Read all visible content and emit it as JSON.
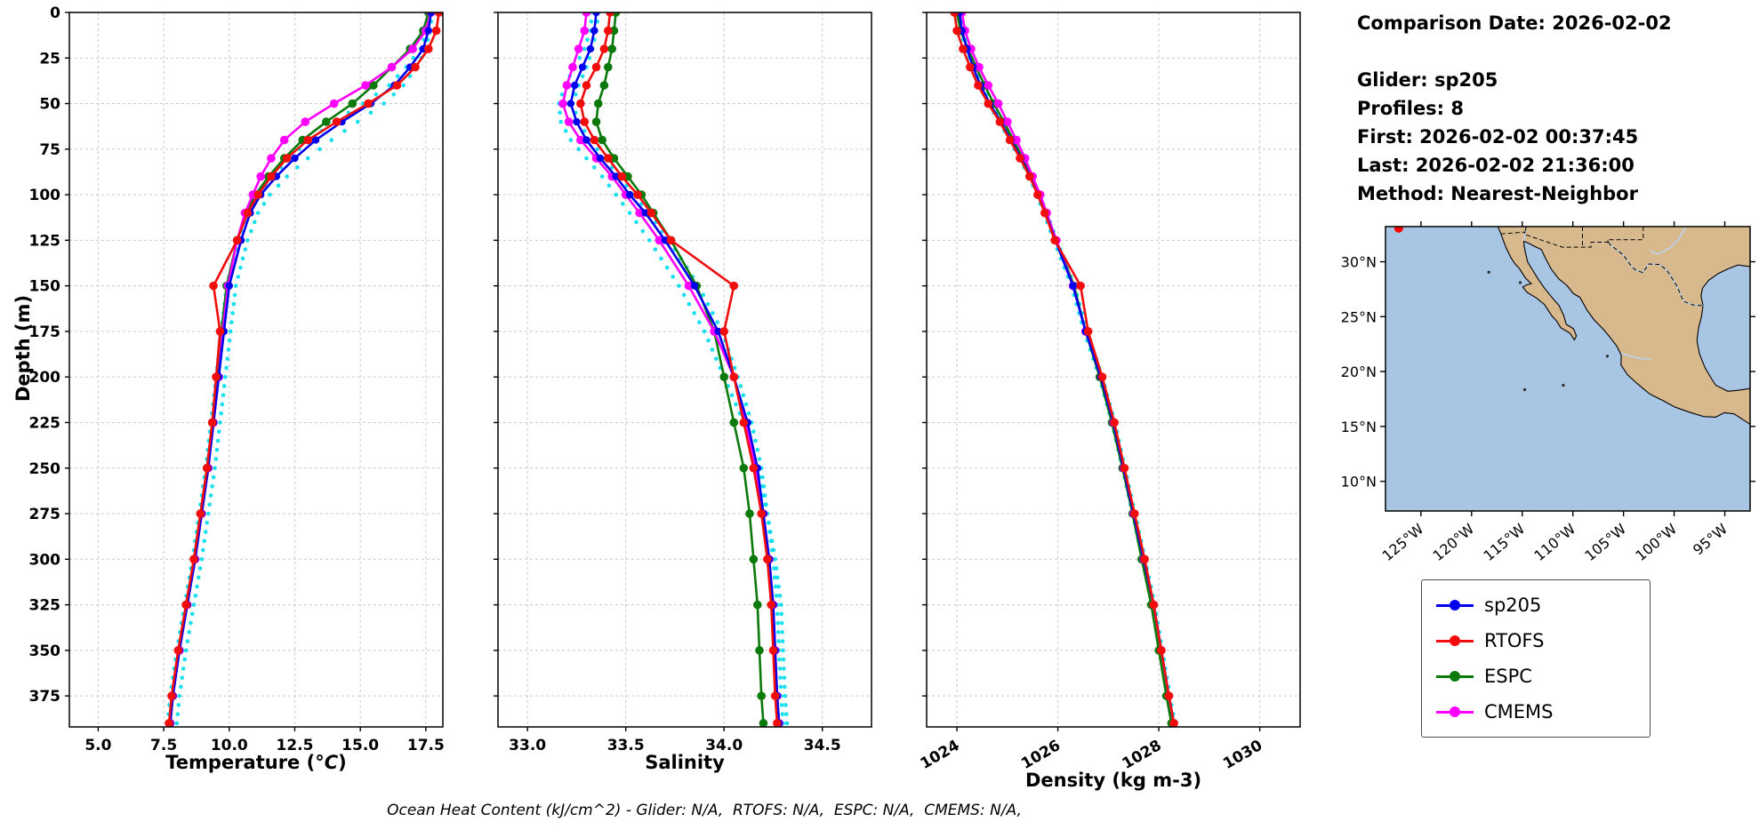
{
  "info": {
    "title": "Comparison Date: 2026-02-02",
    "lines": [
      "Glider: sp205",
      "Profiles: 8",
      "First: 2026-02-02 00:37:45",
      "Last: 2026-02-02 21:36:00",
      "Method: Nearest-Neighbor"
    ]
  },
  "caption": "Ocean Heat Content (kJ/cm^2) - Glider: N/A,  RTOFS: N/A,  ESPC: N/A,  CMEMS: N/A,",
  "legend": {
    "items": [
      {
        "label": "sp205",
        "color": "#0000ee"
      },
      {
        "label": "RTOFS",
        "color": "#f20d0d"
      },
      {
        "label": "ESPC",
        "color": "#0b7a0b"
      },
      {
        "label": "CMEMS",
        "color": "#ff00ff"
      }
    ]
  },
  "map": {
    "ocean_color": "#a9c5e4",
    "land_color": "#d8b98d",
    "marker_color": "#ff0000",
    "lat_ticks": [
      {
        "v": 30,
        "label": "30°N"
      },
      {
        "v": 25,
        "label": "25°N"
      },
      {
        "v": 20,
        "label": "20°N"
      },
      {
        "v": 15,
        "label": "15°N"
      },
      {
        "v": 10,
        "label": "10°N"
      }
    ],
    "lon_ticks": [
      {
        "v": -125,
        "label": "125°W"
      },
      {
        "v": -120,
        "label": "120°W"
      },
      {
        "v": -115,
        "label": "115°W"
      },
      {
        "v": -110,
        "label": "110°W"
      },
      {
        "v": -105,
        "label": "105°W"
      },
      {
        "v": -100,
        "label": "100°W"
      },
      {
        "v": -95,
        "label": "95°W"
      }
    ]
  },
  "chart_data": [
    {
      "type": "line",
      "panel": "temperature-vs-depth",
      "xlabel_prefix": "Temperature (",
      "xlabel_unit": "°C",
      "xlabel_suffix": ")",
      "ylabel": "Depth (m)",
      "xlim": [
        3.9,
        18.15
      ],
      "ylim": [
        392,
        0
      ],
      "tick_rotation": 0,
      "show_ytick_labels": true,
      "xticks": [
        {
          "v": 5.0,
          "label": "5.0"
        },
        {
          "v": 7.5,
          "label": "7.5"
        },
        {
          "v": 10.0,
          "label": "10.0"
        },
        {
          "v": 12.5,
          "label": "12.5"
        },
        {
          "v": 15.0,
          "label": "15.0"
        },
        {
          "v": 17.5,
          "label": "17.5"
        }
      ],
      "yticks": [
        {
          "v": 0,
          "label": "0"
        },
        {
          "v": 25,
          "label": "25"
        },
        {
          "v": 50,
          "label": "50"
        },
        {
          "v": 75,
          "label": "75"
        },
        {
          "v": 100,
          "label": "100"
        },
        {
          "v": 125,
          "label": "125"
        },
        {
          "v": 150,
          "label": "150"
        },
        {
          "v": 175,
          "label": "175"
        },
        {
          "v": 200,
          "label": "200"
        },
        {
          "v": 225,
          "label": "225"
        },
        {
          "v": 250,
          "label": "250"
        },
        {
          "v": 275,
          "label": "275"
        },
        {
          "v": 300,
          "label": "300"
        },
        {
          "v": 325,
          "label": "325"
        },
        {
          "v": 350,
          "label": "350"
        },
        {
          "v": 375,
          "label": "375"
        }
      ],
      "depths": [
        0,
        10,
        20,
        30,
        40,
        50,
        60,
        70,
        80,
        90,
        100,
        110,
        125,
        150,
        175,
        200,
        225,
        250,
        275,
        300,
        325,
        350,
        375,
        390
      ],
      "series": [
        {
          "name": "glider-raw-profile-a",
          "color": "#00dcee",
          "style": "dots",
          "values": [
            17.75,
            17.65,
            17.5,
            17.15,
            16.65,
            15.9,
            14.9,
            13.9,
            13.0,
            12.2,
            11.55,
            11.1,
            10.7,
            10.25,
            10.05,
            9.85,
            9.65,
            9.45,
            9.2,
            8.95,
            8.65,
            8.35,
            8.1,
            8.0
          ]
        },
        {
          "name": "glider-raw-profile-b",
          "color": "#00dcee",
          "style": "dots",
          "values": [
            17.65,
            17.55,
            17.3,
            16.75,
            16.1,
            15.1,
            14.0,
            13.05,
            12.3,
            11.65,
            11.1,
            10.7,
            10.35,
            9.9,
            9.7,
            9.5,
            9.3,
            9.1,
            8.85,
            8.6,
            8.3,
            8.0,
            7.75,
            7.65
          ]
        },
        {
          "name": "ESPC",
          "color": "#0b7a0b",
          "style": "line-marker",
          "values": [
            17.6,
            17.4,
            16.9,
            16.2,
            15.5,
            14.7,
            13.7,
            12.8,
            12.1,
            11.5,
            11.0,
            10.65,
            10.3,
            9.9,
            9.7,
            9.55,
            9.35,
            9.15,
            8.9,
            8.65,
            8.35,
            8.1,
            7.85,
            7.75
          ]
        },
        {
          "name": "CMEMS",
          "color": "#ff00ff",
          "style": "line-marker",
          "values": [
            17.7,
            17.5,
            17.0,
            16.2,
            15.2,
            14.0,
            12.9,
            12.1,
            11.6,
            11.2,
            10.9,
            10.6,
            10.3,
            9.95,
            9.75,
            9.6,
            9.4,
            9.2,
            8.95,
            8.7,
            8.4,
            8.1,
            7.85,
            7.75
          ]
        },
        {
          "name": "sp205",
          "color": "#0000ee",
          "style": "line-marker",
          "values": [
            17.7,
            17.6,
            17.4,
            16.9,
            16.3,
            15.4,
            14.3,
            13.3,
            12.5,
            11.8,
            11.2,
            10.8,
            10.45,
            10.0,
            9.8,
            9.6,
            9.4,
            9.2,
            8.95,
            8.7,
            8.4,
            8.1,
            7.85,
            7.75
          ]
        },
        {
          "name": "RTOFS",
          "color": "#f20d0d",
          "style": "line-marker",
          "values": [
            18.0,
            17.9,
            17.6,
            17.1,
            16.4,
            15.3,
            14.1,
            13.0,
            12.2,
            11.6,
            11.1,
            10.7,
            10.3,
            9.4,
            9.65,
            9.5,
            9.35,
            9.15,
            8.9,
            8.65,
            8.35,
            8.05,
            7.8,
            7.7
          ]
        }
      ]
    },
    {
      "type": "line",
      "panel": "salinity-vs-depth",
      "xlabel": "Salinity",
      "xlim": [
        32.85,
        34.75
      ],
      "ylim": [
        392,
        0
      ],
      "tick_rotation": 0,
      "show_ytick_labels": false,
      "xticks": [
        {
          "v": 33.0,
          "label": "33.0"
        },
        {
          "v": 33.5,
          "label": "33.5"
        },
        {
          "v": 34.0,
          "label": "34.0"
        },
        {
          "v": 34.5,
          "label": "34.5"
        }
      ],
      "depths": [
        0,
        10,
        20,
        30,
        40,
        50,
        60,
        70,
        80,
        90,
        100,
        110,
        125,
        150,
        175,
        200,
        225,
        250,
        275,
        300,
        325,
        350,
        375,
        390
      ],
      "series": [
        {
          "name": "glider-raw-profile-a",
          "color": "#00dcee",
          "style": "dots",
          "values": [
            33.33,
            33.32,
            33.29,
            33.24,
            33.19,
            33.16,
            33.17,
            33.22,
            33.3,
            33.38,
            33.45,
            33.52,
            33.62,
            33.77,
            33.9,
            34.0,
            34.1,
            34.17,
            34.22,
            34.26,
            34.29,
            34.3,
            34.31,
            34.32
          ]
        },
        {
          "name": "glider-raw-profile-b",
          "color": "#00dcee",
          "style": "dots",
          "values": [
            33.36,
            33.35,
            33.33,
            33.3,
            33.26,
            33.23,
            33.26,
            33.32,
            33.39,
            33.47,
            33.54,
            33.62,
            33.72,
            33.87,
            33.99,
            34.07,
            34.14,
            34.19,
            34.22,
            34.25,
            34.27,
            34.28,
            34.29,
            34.3
          ]
        },
        {
          "name": "ESPC",
          "color": "#0b7a0b",
          "style": "line-marker",
          "values": [
            33.45,
            33.44,
            33.43,
            33.41,
            33.39,
            33.36,
            33.35,
            33.38,
            33.44,
            33.51,
            33.58,
            33.64,
            33.73,
            33.86,
            33.95,
            34.0,
            34.05,
            34.1,
            34.13,
            34.15,
            34.17,
            34.18,
            34.19,
            34.2
          ]
        },
        {
          "name": "CMEMS",
          "color": "#ff00ff",
          "style": "line-marker",
          "values": [
            33.3,
            33.29,
            33.26,
            33.23,
            33.2,
            33.18,
            33.21,
            33.27,
            33.35,
            33.43,
            33.5,
            33.57,
            33.67,
            33.82,
            33.95,
            34.05,
            34.11,
            34.16,
            34.2,
            34.23,
            34.25,
            34.26,
            34.27,
            34.28
          ]
        },
        {
          "name": "sp205",
          "color": "#0000ee",
          "style": "line-marker",
          "values": [
            33.35,
            33.34,
            33.32,
            33.28,
            33.24,
            33.22,
            33.25,
            33.3,
            33.37,
            33.45,
            33.52,
            33.6,
            33.7,
            33.85,
            33.97,
            34.05,
            34.12,
            34.17,
            34.2,
            34.23,
            34.25,
            34.26,
            34.27,
            34.28
          ]
        },
        {
          "name": "RTOFS",
          "color": "#f20d0d",
          "style": "line-marker",
          "values": [
            33.42,
            33.41,
            33.39,
            33.35,
            33.3,
            33.27,
            33.29,
            33.34,
            33.41,
            33.48,
            33.56,
            33.63,
            33.73,
            34.05,
            34.0,
            34.05,
            34.1,
            34.15,
            34.19,
            34.22,
            34.24,
            34.25,
            34.26,
            34.27
          ]
        }
      ]
    },
    {
      "type": "line",
      "panel": "density-vs-depth",
      "xlabel": "Density (kg m-3)",
      "xlim": [
        1023.4,
        1030.8
      ],
      "ylim": [
        392,
        0
      ],
      "tick_rotation": -30,
      "show_ytick_labels": false,
      "xticks": [
        {
          "v": 1024,
          "label": "1024"
        },
        {
          "v": 1026,
          "label": "1026"
        },
        {
          "v": 1028,
          "label": "1028"
        },
        {
          "v": 1030,
          "label": "1030"
        }
      ],
      "depths": [
        0,
        10,
        20,
        30,
        40,
        50,
        60,
        70,
        80,
        90,
        100,
        110,
        125,
        150,
        175,
        200,
        225,
        250,
        275,
        300,
        325,
        350,
        375,
        390
      ],
      "series": [
        {
          "name": "glider-raw-profile-a",
          "color": "#00dcee",
          "style": "dots",
          "values": [
            1024.02,
            1024.08,
            1024.17,
            1024.3,
            1024.45,
            1024.62,
            1024.84,
            1025.04,
            1025.24,
            1025.43,
            1025.58,
            1025.72,
            1025.92,
            1026.27,
            1026.52,
            1026.82,
            1027.07,
            1027.28,
            1027.48,
            1027.68,
            1027.88,
            1028.03,
            1028.18,
            1028.28
          ]
        },
        {
          "name": "glider-raw-profile-b",
          "color": "#00dcee",
          "style": "dots",
          "values": [
            1024.08,
            1024.13,
            1024.23,
            1024.35,
            1024.5,
            1024.68,
            1024.9,
            1025.1,
            1025.3,
            1025.48,
            1025.63,
            1025.78,
            1025.98,
            1026.33,
            1026.58,
            1026.88,
            1027.13,
            1027.33,
            1027.53,
            1027.73,
            1027.92,
            1028.07,
            1028.22,
            1028.32
          ]
        },
        {
          "name": "ESPC",
          "color": "#0b7a0b",
          "style": "line-marker",
          "values": [
            1024.0,
            1024.07,
            1024.22,
            1024.38,
            1024.55,
            1024.73,
            1024.93,
            1025.12,
            1025.3,
            1025.48,
            1025.63,
            1025.77,
            1025.97,
            1026.32,
            1026.55,
            1026.83,
            1027.07,
            1027.28,
            1027.48,
            1027.66,
            1027.85,
            1028.0,
            1028.15,
            1028.25
          ]
        },
        {
          "name": "CMEMS",
          "color": "#ff00ff",
          "style": "line-marker",
          "values": [
            1024.1,
            1024.16,
            1024.28,
            1024.44,
            1024.62,
            1024.82,
            1025.0,
            1025.18,
            1025.35,
            1025.5,
            1025.65,
            1025.78,
            1025.97,
            1026.3,
            1026.55,
            1026.87,
            1027.1,
            1027.3,
            1027.5,
            1027.7,
            1027.9,
            1028.05,
            1028.2,
            1028.3
          ]
        },
        {
          "name": "sp205",
          "color": "#0000ee",
          "style": "line-marker",
          "values": [
            1024.05,
            1024.1,
            1024.2,
            1024.32,
            1024.47,
            1024.65,
            1024.87,
            1025.07,
            1025.27,
            1025.45,
            1025.6,
            1025.75,
            1025.95,
            1026.3,
            1026.55,
            1026.85,
            1027.1,
            1027.3,
            1027.5,
            1027.7,
            1027.9,
            1028.05,
            1028.2,
            1028.3
          ]
        },
        {
          "name": "RTOFS",
          "color": "#f20d0d",
          "style": "line-marker",
          "values": [
            1023.95,
            1024.0,
            1024.12,
            1024.26,
            1024.42,
            1024.62,
            1024.85,
            1025.05,
            1025.25,
            1025.44,
            1025.6,
            1025.74,
            1025.94,
            1026.45,
            1026.6,
            1026.88,
            1027.12,
            1027.32,
            1027.52,
            1027.72,
            1027.9,
            1028.05,
            1028.2,
            1028.3
          ]
        }
      ]
    }
  ]
}
